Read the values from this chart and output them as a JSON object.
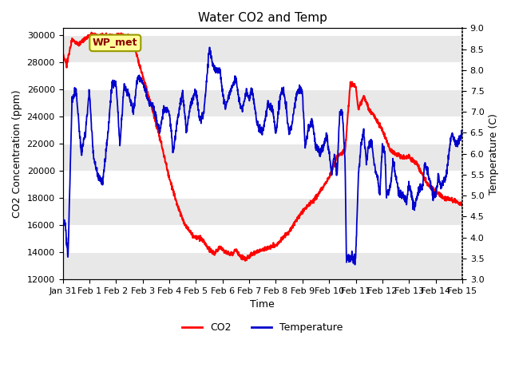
{
  "title": "Water CO2 and Temp",
  "xlabel": "Time",
  "ylabel_left": "CO2 Concentration (ppm)",
  "ylabel_right": "Temperature (C)",
  "annotation_text": "WP_met",
  "co2_ylim": [
    12000,
    30500
  ],
  "temp_ylim": [
    3.0,
    9.0
  ],
  "co2_yticks": [
    12000,
    14000,
    16000,
    18000,
    20000,
    22000,
    24000,
    26000,
    28000,
    30000
  ],
  "temp_yticks": [
    3.0,
    3.5,
    4.0,
    4.5,
    5.0,
    5.5,
    6.0,
    6.5,
    7.0,
    7.5,
    8.0,
    8.5,
    9.0
  ],
  "co2_color": "#FF0000",
  "temp_color": "#0000CC",
  "background_color": "#FFFFFF",
  "stripe_color": "#E8E8E8",
  "legend_co2_label": "CO2",
  "legend_temp_label": "Temperature",
  "xtick_labels": [
    "Jan 31",
    "Feb 1",
    "Feb 2",
    "Feb 3",
    "Feb 4",
    "Feb 5",
    "Feb 6",
    "Feb 7",
    "Feb 8",
    "Feb 9",
    "Feb 10",
    "Feb 11",
    "Feb 12",
    "Feb 13",
    "Feb 14",
    "Feb 15"
  ],
  "figsize": [
    6.4,
    4.8
  ],
  "dpi": 100,
  "annotation_box_color": "#FFFF99",
  "annotation_box_edgecolor": "#999900"
}
